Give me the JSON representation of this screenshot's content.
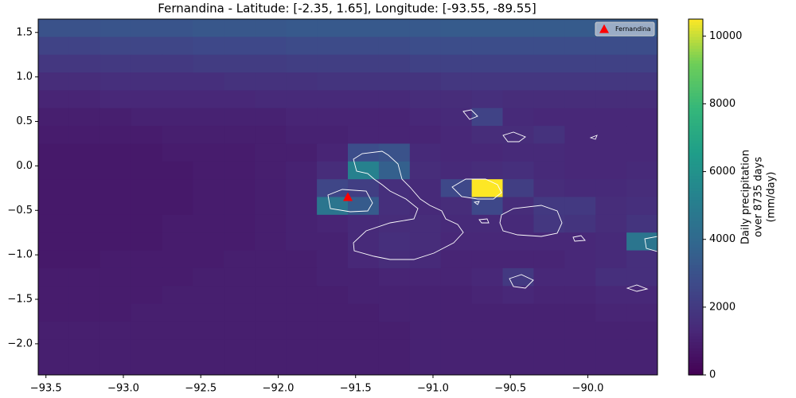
{
  "chart_data": {
    "type": "heatmap",
    "title": "Fernandina - Latitude: [-2.35, 1.65], Longitude: [-93.55, -89.55]",
    "xlim": [
      -93.55,
      -89.55
    ],
    "ylim": [
      -2.35,
      1.65
    ],
    "xticks": [
      {
        "value": -93.5,
        "label": "−93.5"
      },
      {
        "value": -93.0,
        "label": "−93.0"
      },
      {
        "value": -92.5,
        "label": "−92.5"
      },
      {
        "value": -92.0,
        "label": "−92.0"
      },
      {
        "value": -91.5,
        "label": "−91.5"
      },
      {
        "value": -91.0,
        "label": "−91.0"
      },
      {
        "value": -90.5,
        "label": "−90.5"
      },
      {
        "value": -90.0,
        "label": "−90.0"
      }
    ],
    "yticks": [
      {
        "value": 1.5,
        "label": "1.5"
      },
      {
        "value": 1.0,
        "label": "1.0"
      },
      {
        "value": 0.5,
        "label": "0.5"
      },
      {
        "value": 0.0,
        "label": "0.0"
      },
      {
        "value": -0.5,
        "label": "−0.5"
      },
      {
        "value": -1.0,
        "label": "−1.0"
      },
      {
        "value": -1.5,
        "label": "−1.5"
      },
      {
        "value": -2.0,
        "label": "−2.0"
      }
    ],
    "colormap": "viridis",
    "clim": [
      0,
      10500
    ],
    "cticks": [
      0,
      2000,
      4000,
      6000,
      8000,
      10000
    ],
    "colorbar_label": [
      "Daily precipitation",
      "over 8735 days",
      "(mm/day)"
    ],
    "z": [
      [
        3000,
        3000,
        3100,
        3100,
        3100,
        3200,
        3200,
        3200,
        3300,
        3300,
        3300,
        3300,
        3300,
        3400,
        3400,
        3400,
        3400,
        3400,
        3400,
        3400
      ],
      [
        2400,
        2400,
        2500,
        2500,
        2500,
        2600,
        2600,
        2600,
        2700,
        2700,
        2700,
        2700,
        2800,
        2800,
        2800,
        2800,
        2800,
        2800,
        2800,
        2800
      ],
      [
        1900,
        1900,
        2000,
        2000,
        2000,
        2100,
        2100,
        2100,
        2200,
        2200,
        2200,
        2200,
        2300,
        2300,
        2300,
        2300,
        2300,
        2300,
        2300,
        2300
      ],
      [
        1500,
        1500,
        1600,
        1600,
        1600,
        1600,
        1700,
        1700,
        1700,
        1800,
        1800,
        1800,
        1800,
        1900,
        1900,
        1900,
        1900,
        1900,
        1900,
        1900
      ],
      [
        1200,
        1200,
        1300,
        1300,
        1300,
        1300,
        1300,
        1400,
        1400,
        1400,
        1400,
        1400,
        1500,
        1500,
        1600,
        1500,
        1500,
        1500,
        1500,
        1500
      ],
      [
        1000,
        1000,
        1000,
        1100,
        1100,
        1100,
        1100,
        1100,
        1200,
        1200,
        1200,
        1200,
        1300,
        1400,
        2400,
        1400,
        1300,
        1300,
        1300,
        1300
      ],
      [
        900,
        900,
        900,
        900,
        1000,
        1000,
        1000,
        1000,
        1100,
        1100,
        1200,
        1200,
        1200,
        1300,
        1500,
        1500,
        1700,
        1300,
        1300,
        1300
      ],
      [
        800,
        800,
        800,
        800,
        900,
        900,
        900,
        1000,
        1000,
        1200,
        2800,
        3000,
        1400,
        1300,
        1300,
        1400,
        1400,
        1300,
        1300,
        1300
      ],
      [
        800,
        800,
        800,
        800,
        800,
        900,
        900,
        1000,
        1100,
        1500,
        5200,
        3600,
        1500,
        1400,
        1500,
        1600,
        1400,
        1300,
        1300,
        1400
      ],
      [
        800,
        800,
        800,
        800,
        800,
        900,
        900,
        1000,
        1100,
        2500,
        2200,
        1600,
        1400,
        2600,
        10500,
        2200,
        1500,
        1400,
        1400,
        1500
      ],
      [
        800,
        800,
        800,
        800,
        800,
        900,
        900,
        1000,
        1100,
        4600,
        3400,
        1600,
        1400,
        1500,
        2600,
        1500,
        2000,
        2000,
        1500,
        1600
      ],
      [
        800,
        800,
        800,
        800,
        900,
        900,
        900,
        1000,
        1100,
        1200,
        1400,
        1500,
        1500,
        1400,
        1400,
        1400,
        1900,
        1800,
        1500,
        1800
      ],
      [
        800,
        800,
        800,
        800,
        900,
        900,
        900,
        1000,
        1100,
        1100,
        1400,
        1600,
        1500,
        1300,
        1300,
        1300,
        1300,
        1300,
        1400,
        4600
      ],
      [
        800,
        800,
        900,
        900,
        900,
        900,
        1000,
        1000,
        1000,
        1100,
        1300,
        1500,
        1400,
        1200,
        1200,
        1200,
        1200,
        1300,
        1400,
        1600
      ],
      [
        900,
        900,
        900,
        900,
        900,
        1000,
        1000,
        1000,
        1000,
        1100,
        1100,
        1200,
        1200,
        1200,
        1300,
        2000,
        1300,
        1300,
        1600,
        1600
      ],
      [
        900,
        900,
        900,
        900,
        1000,
        1000,
        1000,
        1000,
        1000,
        1000,
        1100,
        1100,
        1100,
        1100,
        1200,
        1300,
        1200,
        1200,
        1300,
        1300
      ],
      [
        900,
        900,
        900,
        1000,
        1000,
        1000,
        1000,
        1000,
        1000,
        1000,
        1000,
        1100,
        1100,
        1100,
        1100,
        1100,
        1100,
        1100,
        1200,
        1200
      ],
      [
        1000,
        1000,
        1000,
        1000,
        1000,
        1000,
        1000,
        1000,
        1000,
        1000,
        1000,
        1000,
        1100,
        1100,
        1100,
        1100,
        1100,
        1100,
        1100,
        1100
      ],
      [
        1000,
        1000,
        1000,
        1000,
        1000,
        1000,
        1000,
        1000,
        1000,
        1000,
        1000,
        1000,
        1100,
        1100,
        1100,
        1100,
        1100,
        1100,
        1100,
        1100
      ],
      [
        1000,
        1000,
        1000,
        1000,
        1000,
        1000,
        1000,
        1000,
        1000,
        1000,
        1000,
        1000,
        1100,
        1100,
        1100,
        1100,
        1100,
        1100,
        1100,
        1100
      ]
    ],
    "markers": [
      {
        "name": "Fernandina",
        "lon": -91.55,
        "lat": -0.35,
        "color": "red"
      }
    ],
    "legend": "upper right"
  }
}
